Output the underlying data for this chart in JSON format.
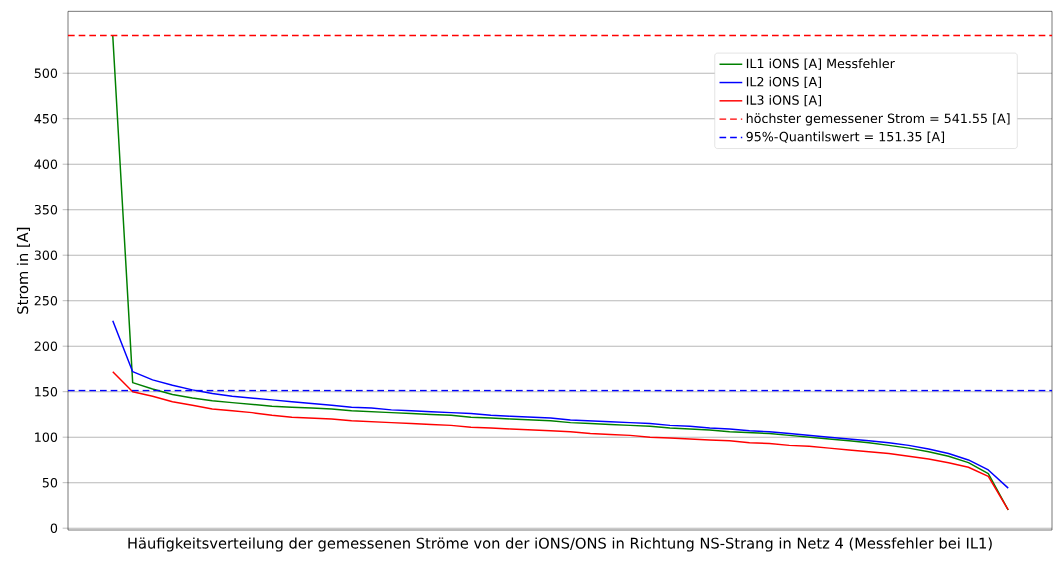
{
  "chart_data": {
    "type": "line",
    "xlabel": "Häufigkeitsverteilung der gemessenen Ströme von der iONS/ONS in Richtung NS-Strang in Netz 4 (Messfehler bei IL1)",
    "ylabel": "Strom in [A]",
    "categories": [
      null,
      null,
      null,
      null,
      null,
      null,
      null,
      null,
      null,
      null,
      null,
      null,
      null,
      null,
      null,
      null,
      null,
      null,
      null,
      null,
      null,
      null,
      null,
      null,
      null,
      null,
      null,
      null,
      null,
      null,
      null,
      null,
      null,
      null,
      null,
      null,
      null,
      null,
      null,
      null,
      null,
      null,
      null,
      null,
      null,
      null
    ],
    "series": [
      {
        "name": "IL1 iONS [A] Messfehler",
        "color": "#008000",
        "values": [
          541,
          160,
          153,
          147,
          143,
          140,
          138,
          136,
          134,
          133,
          132,
          131,
          129,
          128,
          127,
          126,
          125,
          124,
          122,
          121,
          120,
          119,
          118,
          116,
          115,
          114,
          113,
          112,
          110,
          109,
          108,
          106,
          105,
          104,
          102,
          100,
          98,
          96,
          94,
          91,
          88,
          84,
          79,
          72,
          60,
          20
        ]
      },
      {
        "name": "IL2 iONS [A]",
        "color": "#0000ff",
        "values": [
          228,
          172,
          163,
          157,
          152,
          148,
          145,
          143,
          141,
          139,
          137,
          135,
          133,
          132,
          130,
          129,
          128,
          127,
          126,
          124,
          123,
          122,
          121,
          119,
          118,
          117,
          116,
          115,
          113,
          112,
          110,
          109,
          107,
          106,
          104,
          102,
          100,
          98,
          96,
          94,
          91,
          87,
          82,
          75,
          64,
          44
        ]
      },
      {
        "name": "IL3 iONS [A]",
        "color": "#ff0000",
        "values": [
          172,
          150,
          145,
          139,
          135,
          131,
          129,
          127,
          124,
          122,
          121,
          120,
          118,
          117,
          116,
          115,
          114,
          113,
          111,
          110,
          109,
          108,
          107,
          106,
          104,
          103,
          102,
          100,
          99,
          98,
          97,
          96,
          94,
          93,
          91,
          90,
          88,
          86,
          84,
          82,
          79,
          76,
          72,
          67,
          57,
          20
        ]
      }
    ],
    "ref_lines": [
      {
        "axis": "y",
        "value": 541.55,
        "label": "höchster gemessener Strom = 541.55 [A]",
        "color": "#ff0000",
        "line_style": "dashed"
      },
      {
        "axis": "y",
        "value": 151.35,
        "label": "95%-Quantilswert = 151.35 [A]",
        "color": "#0000ff",
        "line_style": "dashed"
      }
    ],
    "ylim": [
      -2,
      568
    ],
    "yticks": [
      0,
      50,
      100,
      150,
      200,
      250,
      300,
      350,
      400,
      450,
      500
    ],
    "grid": "y",
    "legend": "top right",
    "marker": "none",
    "line_style": "solid",
    "tick_labels": "y"
  }
}
